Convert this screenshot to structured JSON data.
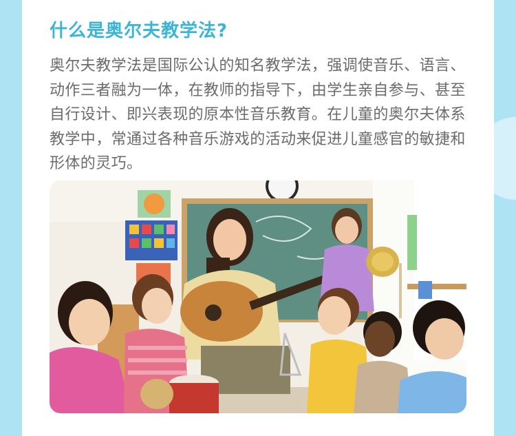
{
  "article": {
    "title": "什么是奥尔夫教学法?",
    "paragraph": "奥尔夫教学法是国际公认的知名教学法，强调使音乐、语言、动作三者融为一体，在教师的指导下，由学生亲自参与、甚至自行设计、即兴表现的原本性音乐教育。在儿童的奥尔夫体系教学中，常通过各种音乐游戏的活动来促进儿童感官的敏捷和形体的灵巧。"
  },
  "colors": {
    "background": "#aee3f4",
    "title": "#3ab5da",
    "body_text": "#6b6b6b",
    "card": "#ffffff"
  }
}
